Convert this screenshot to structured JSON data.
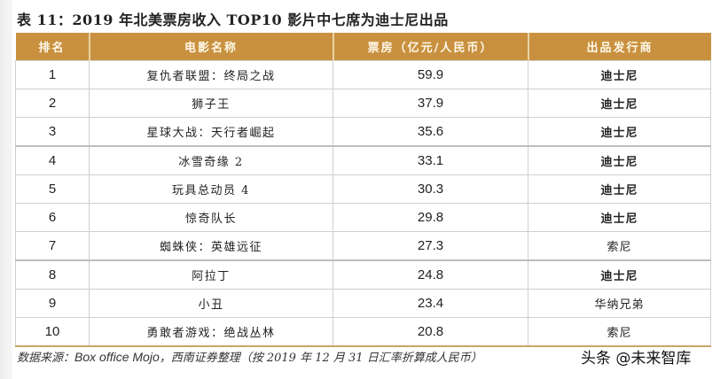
{
  "title": "表 11：2019 年北美票房收入 TOP10 影片中七席为迪士尼出品",
  "table": {
    "headers": [
      "排名",
      "电影名称",
      "票房（亿元/人民币）",
      "出品发行商"
    ],
    "rows": [
      {
        "rank": "1",
        "name": "复仇者联盟：终局之战",
        "box_office": "59.9",
        "publisher": "迪士尼",
        "disney": true
      },
      {
        "rank": "2",
        "name": "狮子王",
        "box_office": "37.9",
        "publisher": "迪士尼",
        "disney": true
      },
      {
        "rank": "3",
        "name": "星球大战：天行者崛起",
        "box_office": "35.6",
        "publisher": "迪士尼",
        "disney": true
      },
      {
        "rank": "4",
        "name": "冰雪奇缘 2",
        "box_office": "33.1",
        "publisher": "迪士尼",
        "disney": true
      },
      {
        "rank": "5",
        "name": "玩具总动员 4",
        "box_office": "30.3",
        "publisher": "迪士尼",
        "disney": true
      },
      {
        "rank": "6",
        "name": "惊奇队长",
        "box_office": "29.8",
        "publisher": "迪士尼",
        "disney": true
      },
      {
        "rank": "7",
        "name": "蜘蛛侠：英雄远征",
        "box_office": "27.3",
        "publisher": "索尼",
        "disney": false
      },
      {
        "rank": "8",
        "name": "阿拉丁",
        "box_office": "24.8",
        "publisher": "迪士尼",
        "disney": true
      },
      {
        "rank": "9",
        "name": "小丑",
        "box_office": "23.4",
        "publisher": "华纳兄弟",
        "disney": false
      },
      {
        "rank": "10",
        "name": "勇敢者游戏：绝战丛林",
        "box_office": "20.8",
        "publisher": "索尼",
        "disney": false
      }
    ]
  },
  "source": {
    "prefix": "数据来源：",
    "latin": "Box office Mojo",
    "suffix": "，西南证券整理（按 2019 年 12 月 31 日汇率折算成人民币）"
  },
  "watermark": "头条 @未来智库",
  "colors": {
    "header_bg": "#c9913f",
    "header_text": "#fff8ea",
    "bottom_rule": "#c9a46a"
  }
}
